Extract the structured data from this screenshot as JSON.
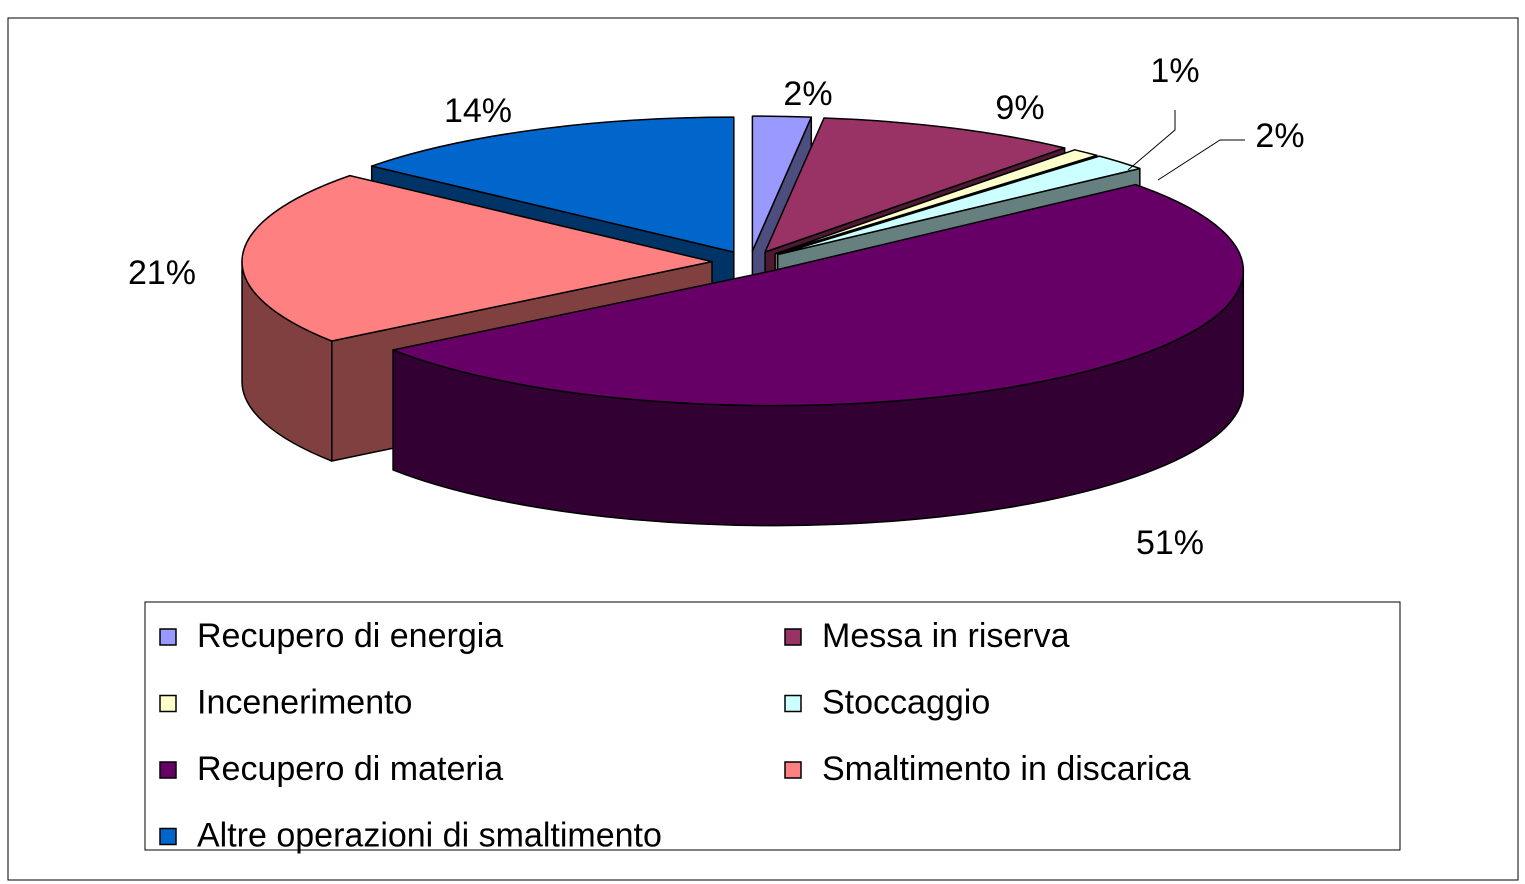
{
  "chart_data": {
    "type": "pie3d",
    "categories": [
      "Recupero di energia",
      "Messa in riserva",
      "Incenerimento",
      "Stoccaggio",
      "Recupero di materia",
      "Smaltimento in discarica",
      "Altre operazioni di smaltimento"
    ],
    "values": [
      2,
      9,
      1,
      2,
      51,
      21,
      14
    ],
    "value_labels": [
      "2%",
      "9%",
      "1%",
      "2%",
      "51%",
      "21%",
      "14%"
    ],
    "colors": [
      "#9999ff",
      "#993366",
      "#ffffcc",
      "#ccffff",
      "#660066",
      "#ff8080",
      "#0066cc"
    ],
    "legend": "bottom"
  }
}
